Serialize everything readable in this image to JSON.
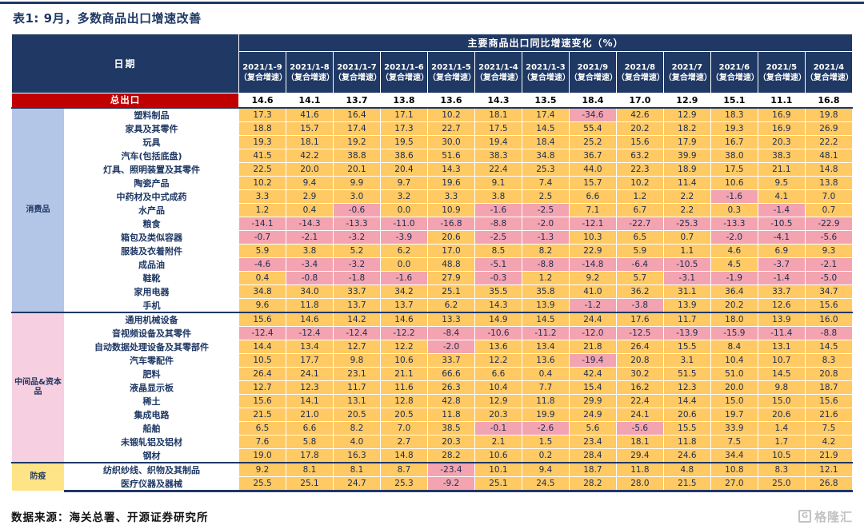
{
  "chart_data": {
    "type": "table",
    "title": "表1: 9月，多数商品出口增速改善",
    "header_title": "主要商品出口同比增速变化（%）",
    "date_header": "日期",
    "columns": [
      "2021/1-9（复合增速）",
      "2021/1-8（复合增速）",
      "2021/1-7（复合增速）",
      "2021/1-6（复合增速）",
      "2021/1-5（复合增速）",
      "2021/1-4（复合增速）",
      "2021/1-3（复合增速）",
      "2021/9（复合增速）",
      "2021/8（复合增速）",
      "2021/7（复合增速）",
      "2021/6（复合增速）",
      "2021/5（复合增速）",
      "2021/4（复合增速）"
    ],
    "total_row": {
      "label": "总出口",
      "values": [
        14.6,
        14.1,
        13.7,
        13.8,
        13.6,
        14.3,
        13.5,
        18.4,
        17.0,
        12.9,
        15.1,
        11.1,
        16.8
      ]
    },
    "groups": [
      {
        "name": "消费品",
        "bg": "#B4C6E7",
        "rows": [
          {
            "label": "塑料制品",
            "values": [
              17.3,
              41.6,
              16.4,
              17.1,
              10.2,
              18.1,
              17.4,
              -34.6,
              42.6,
              12.9,
              18.3,
              16.9,
              19.8
            ]
          },
          {
            "label": "家具及其零件",
            "values": [
              18.8,
              15.7,
              17.4,
              17.3,
              22.7,
              17.5,
              14.5,
              55.4,
              20.2,
              18.2,
              19.3,
              16.9,
              26.9
            ]
          },
          {
            "label": "玩具",
            "values": [
              19.3,
              18.1,
              19.2,
              19.5,
              30.0,
              19.4,
              18.4,
              25.2,
              15.6,
              17.9,
              16.7,
              20.3,
              22.2
            ]
          },
          {
            "label": "汽车(包括底盘)",
            "values": [
              41.5,
              42.2,
              38.8,
              38.6,
              51.6,
              38.3,
              34.8,
              36.7,
              63.2,
              39.9,
              38.0,
              38.3,
              48.1
            ]
          },
          {
            "label": "灯具、照明装置及其零件",
            "values": [
              22.5,
              20.0,
              20.1,
              20.4,
              14.3,
              22.4,
              25.3,
              44.0,
              22.3,
              18.9,
              17.5,
              21.1,
              14.8
            ]
          },
          {
            "label": "陶瓷产品",
            "values": [
              10.2,
              9.4,
              9.9,
              9.7,
              19.6,
              9.1,
              7.4,
              15.7,
              10.2,
              11.4,
              10.6,
              9.5,
              13.8
            ]
          },
          {
            "label": "中药材及中式成药",
            "values": [
              3.3,
              2.9,
              3.0,
              3.2,
              3.3,
              3.8,
              2.5,
              6.6,
              1.2,
              2.2,
              -1.6,
              4.1,
              7.0
            ]
          },
          {
            "label": "水产品",
            "values": [
              1.2,
              0.4,
              -0.6,
              0.0,
              10.9,
              -1.6,
              -2.5,
              7.1,
              6.7,
              2.2,
              0.3,
              -1.4,
              0.7
            ]
          },
          {
            "label": "粮食",
            "values": [
              -14.1,
              -14.3,
              -13.3,
              -11.0,
              -16.8,
              -8.8,
              -2.0,
              -12.1,
              -22.7,
              -25.3,
              -13.3,
              -10.5,
              -22.9
            ]
          },
          {
            "label": "箱包及类似容器",
            "values": [
              -0.7,
              -2.1,
              -3.2,
              -3.9,
              20.6,
              -2.5,
              -1.3,
              10.3,
              6.5,
              0.7,
              -2.0,
              -4.1,
              -5.6
            ]
          },
          {
            "label": "服装及衣着附件",
            "values": [
              5.9,
              3.8,
              5.2,
              6.2,
              17.0,
              8.5,
              8.2,
              22.9,
              5.9,
              1.1,
              4.6,
              6.9,
              9.3
            ]
          },
          {
            "label": "成品油",
            "values": [
              -4.6,
              -3.4,
              -3.2,
              0.0,
              48.8,
              -5.1,
              -8.8,
              -14.8,
              -6.4,
              -10.5,
              4.5,
              -3.7,
              -2.1
            ]
          },
          {
            "label": "鞋靴",
            "values": [
              0.4,
              -0.8,
              -1.8,
              -1.6,
              27.9,
              -0.3,
              1.2,
              9.2,
              5.7,
              -3.1,
              -1.9,
              -1.4,
              -5.0
            ]
          },
          {
            "label": "家用电器",
            "values": [
              34.8,
              34.0,
              33.7,
              34.2,
              25.1,
              35.5,
              35.8,
              41.0,
              36.2,
              31.1,
              36.4,
              33.7,
              34.7
            ]
          },
          {
            "label": "手机",
            "values": [
              9.6,
              11.8,
              13.7,
              13.7,
              6.2,
              14.3,
              13.9,
              -1.2,
              -3.8,
              13.9,
              20.2,
              12.6,
              15.6
            ]
          }
        ]
      },
      {
        "name": "中间品&资本品",
        "bg": "#F6CFE0",
        "rows": [
          {
            "label": "通用机械设备",
            "values": [
              15.6,
              14.6,
              14.2,
              14.6,
              13.3,
              14.9,
              14.5,
              24.4,
              17.6,
              11.7,
              18.0,
              13.9,
              16.0
            ]
          },
          {
            "label": "音视频设备及其零件",
            "values": [
              -12.4,
              -12.4,
              -12.4,
              -12.2,
              -8.4,
              -10.6,
              -11.2,
              -12.0,
              -12.5,
              -13.9,
              -15.9,
              -11.4,
              -8.8
            ]
          },
          {
            "label": "自动数据处理设备及其零部件",
            "values": [
              14.4,
              13.4,
              12.7,
              12.2,
              -2.0,
              13.6,
              13.4,
              21.8,
              26.4,
              15.5,
              8.4,
              13.1,
              14.5
            ]
          },
          {
            "label": "汽车零配件",
            "values": [
              10.5,
              17.7,
              9.8,
              10.6,
              33.7,
              12.2,
              13.6,
              -19.4,
              20.8,
              3.1,
              10.4,
              10.7,
              8.3
            ]
          },
          {
            "label": "肥料",
            "values": [
              26.4,
              24.1,
              23.1,
              21.1,
              66.6,
              6.6,
              0.4,
              42.4,
              30.2,
              51.5,
              51.0,
              14.5,
              20.8
            ]
          },
          {
            "label": "液晶显示板",
            "values": [
              12.7,
              12.3,
              11.7,
              11.6,
              26.3,
              10.4,
              7.7,
              15.4,
              16.2,
              12.3,
              20.0,
              9.8,
              18.7
            ]
          },
          {
            "label": "稀土",
            "values": [
              15.6,
              14.1,
              13.1,
              12.8,
              42.8,
              12.9,
              11.8,
              29.9,
              22.4,
              14.4,
              15.0,
              15.0,
              15.6
            ]
          },
          {
            "label": "集成电路",
            "values": [
              21.5,
              21.0,
              20.5,
              20.5,
              11.8,
              20.3,
              19.9,
              24.9,
              24.1,
              20.6,
              19.7,
              20.6,
              21.6
            ]
          },
          {
            "label": "船舶",
            "values": [
              6.5,
              6.6,
              8.2,
              7.0,
              38.5,
              -0.1,
              -2.6,
              5.6,
              -5.6,
              15.5,
              33.9,
              1.4,
              7.5
            ]
          },
          {
            "label": "未锻轧铝及铝材",
            "values": [
              7.6,
              5.8,
              4.0,
              2.7,
              20.3,
              2.1,
              1.5,
              23.4,
              18.1,
              11.8,
              7.5,
              1.7,
              4.2
            ]
          },
          {
            "label": "钢材",
            "values": [
              19.0,
              17.8,
              16.3,
              14.8,
              28.2,
              10.6,
              0.2,
              28.4,
              29.4,
              24.6,
              34.4,
              10.5,
              21.9
            ]
          }
        ]
      },
      {
        "name": "防疫",
        "bg": "#FFE387",
        "rows": [
          {
            "label": "纺织纱线、织物及其制品",
            "values": [
              9.2,
              8.1,
              8.1,
              8.7,
              -23.4,
              10.1,
              9.4,
              18.7,
              11.8,
              4.8,
              10.8,
              8.3,
              12.1
            ]
          },
          {
            "label": "医疗仪器及器械",
            "values": [
              25.5,
              25.1,
              24.7,
              25.3,
              -9.2,
              25.1,
              24.5,
              28.2,
              28.0,
              21.5,
              27.0,
              25.0,
              26.8
            ]
          }
        ]
      }
    ],
    "cell_colors": {
      "positive": "#FFC963",
      "negative": "#F3A4B0"
    },
    "theme": {
      "header_bg": "#1F3864",
      "total_label_bg": "#C00000",
      "accent": "#1F3864"
    },
    "source": "数据来源：海关总署、开源证券研究所",
    "logo": "格隆汇",
    "logo_mark": "G"
  }
}
